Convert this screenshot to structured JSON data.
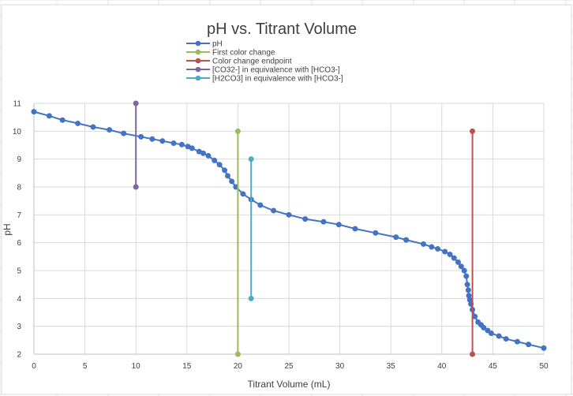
{
  "chart_data": {
    "type": "scatter",
    "title": "pH vs. Titrant Volume",
    "xlabel": "Titrant Volume (mL)",
    "ylabel": "pH",
    "xlim": [
      0,
      50
    ],
    "ylim": [
      2,
      11
    ],
    "xticks": [
      "0",
      "5",
      "10",
      "15",
      "20",
      "25",
      "30",
      "35",
      "40",
      "45",
      "50"
    ],
    "yticks": [
      "2",
      "3",
      "4",
      "5",
      "6",
      "7",
      "8",
      "9",
      "10",
      "11"
    ],
    "grid": true,
    "legend_position": "top",
    "series": [
      {
        "name": "pH",
        "color": "#4472c4",
        "x": [
          0,
          1.5,
          2.8,
          4.3,
          5.8,
          7.4,
          8.8,
          10.5,
          11.6,
          12.6,
          13.7,
          14.5,
          15.1,
          15.5,
          16.2,
          16.6,
          17.1,
          17.7,
          18.2,
          18.7,
          19.0,
          19.4,
          19.8,
          20.5,
          21.3,
          22.2,
          23.5,
          25,
          26.6,
          28.4,
          29.9,
          31.5,
          33.5,
          35.5,
          36.5,
          38.2,
          39,
          39.6,
          40.3,
          40.8,
          41.2,
          41.6,
          41.9,
          42.2,
          42.4,
          42.5,
          42.6,
          42.65,
          42.75,
          42.85,
          43.0,
          43.25,
          43.55,
          43.85,
          44.1,
          44.5,
          44.85,
          45.6,
          46.3,
          47.4,
          48.5,
          50
        ],
        "y": [
          10.7,
          10.55,
          10.4,
          10.28,
          10.15,
          10.05,
          9.92,
          9.8,
          9.72,
          9.65,
          9.57,
          9.52,
          9.45,
          9.39,
          9.27,
          9.21,
          9.12,
          8.95,
          8.8,
          8.6,
          8.4,
          8.2,
          8.0,
          7.75,
          7.55,
          7.35,
          7.15,
          7.0,
          6.85,
          6.75,
          6.65,
          6.5,
          6.35,
          6.2,
          6.1,
          5.95,
          5.85,
          5.78,
          5.68,
          5.58,
          5.45,
          5.3,
          5.15,
          5.0,
          4.8,
          4.5,
          4.3,
          4.1,
          3.95,
          3.8,
          3.6,
          3.35,
          3.15,
          3.05,
          2.95,
          2.85,
          2.75,
          2.65,
          2.55,
          2.45,
          2.35,
          2.22
        ]
      },
      {
        "name": "First color change",
        "color": "#9bbb59",
        "x": [
          20,
          20
        ],
        "y": [
          2,
          10
        ]
      },
      {
        "name": "Color change endpoint",
        "color": "#c0504d",
        "x": [
          43,
          43
        ],
        "y": [
          2,
          10
        ]
      },
      {
        "name": "[CO32-] in equivalence with [HCO3-]",
        "color": "#8064a2",
        "x": [
          10,
          10
        ],
        "y": [
          8,
          11
        ]
      },
      {
        "name": "[H2CO3] in equivalence with [HCO3-]",
        "color": "#4bacc6",
        "x": [
          21.3,
          21.3
        ],
        "y": [
          4,
          9
        ]
      }
    ]
  }
}
